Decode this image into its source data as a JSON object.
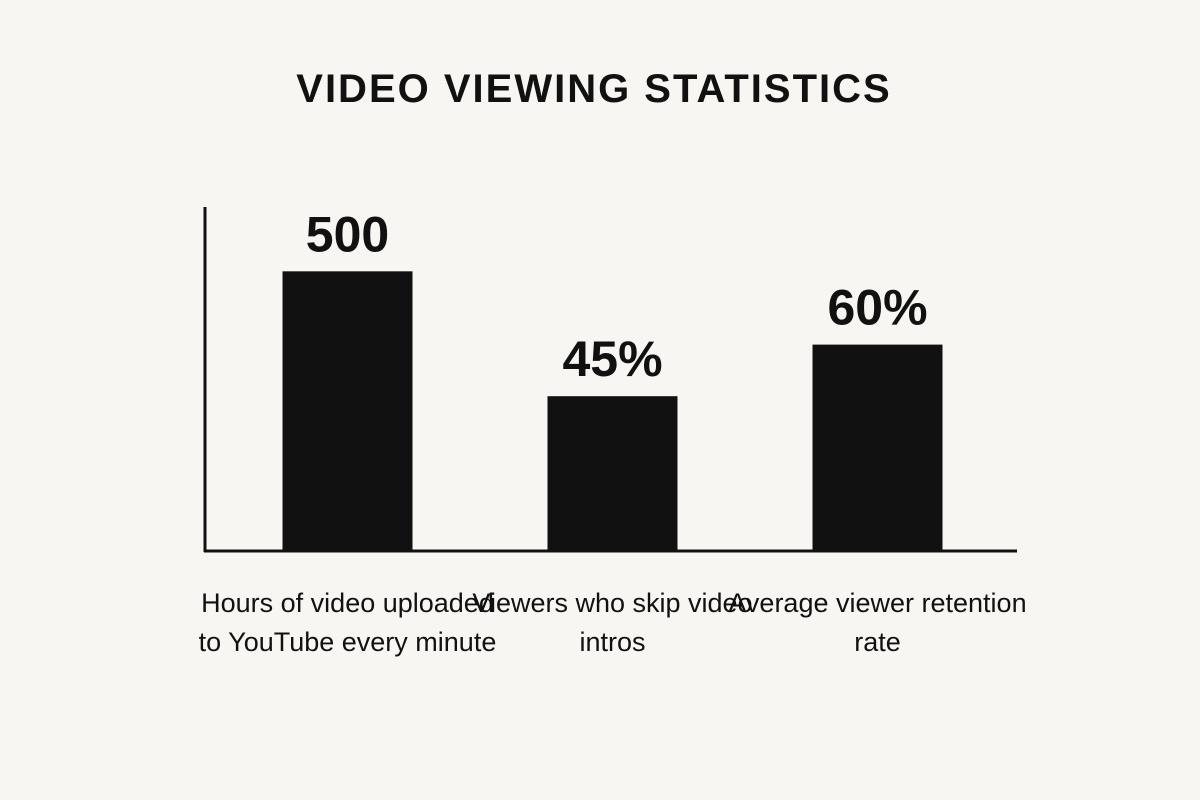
{
  "chart_data": {
    "type": "bar",
    "title": "VIDEO VIEWING STATISTICS",
    "categories": [
      "Hours of video uploaded to YouTube every minute",
      "Viewers who skip video intros",
      "Average viewer retention rate"
    ],
    "series": [
      {
        "color": "#111111",
        "values": [
          500,
          null,
          null
        ]
      },
      {
        "color": "#111111",
        "values": [
          null,
          45,
          60
        ],
        "value_labels": [
          null,
          "45%",
          "60%"
        ],
        "axis": "y2"
      }
    ],
    "ylim": [
      0,
      615
    ],
    "y2lim": [
      0,
      100
    ]
  }
}
